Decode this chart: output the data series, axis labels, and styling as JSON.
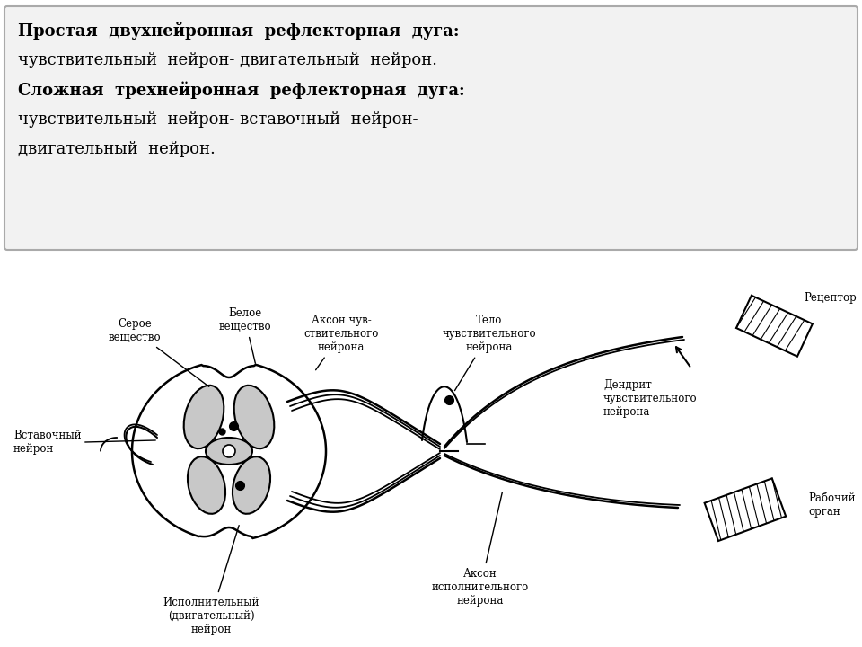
{
  "title_line1_bold": "Простая  двухнейронная  рефлекторная  дуга:",
  "title_line2": "чувствительный  нейрон- двигательный  нейрон.",
  "title_line3_bold": "Сложная  трехнейронная  рефлекторная  дуга:",
  "title_line4": "чувствительный  нейрон- вставочный  нейрон-",
  "title_line5": "двигательный  нейрон.",
  "label_seroe": "Серое\nвещество",
  "label_beloe": "Белое\nвещество",
  "label_akson_chuvst": "Аксон чув-\nствительного\nнейрона",
  "label_telo": "Тело\nчувствительного\nнейрона",
  "label_receptor": "Рецептор",
  "label_dendrit": "Дендрит\nчувствительного\nнейрона",
  "label_vstavochny": "Вставочный\nнейрон",
  "label_ispolnitelny": "Исполнительный\n(двигательный)\nнейрон",
  "label_akson_ispoln": "Аксон\nисполнительного\nнейрона",
  "label_rabochiy": "Рабочий\nорган",
  "bg_color": "#ffffff",
  "box_bg": "#f0f0f0",
  "gray_matter_color": "#c8c8c8",
  "font_size_title": 13,
  "font_size_label": 8.5
}
